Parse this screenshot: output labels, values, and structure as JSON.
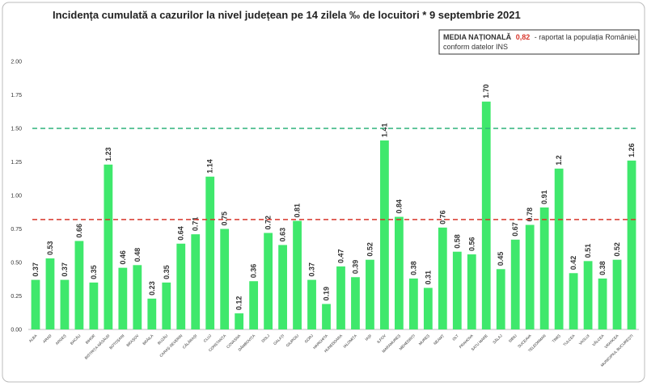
{
  "chart_data": {
    "type": "bar",
    "title": "Incidența cumulată a cazurilor la nivel județean pe 14 zilela ‰ de locuitori * 9 septembrie 2021",
    "annotation": {
      "title": "MEDIA NAȚIONALĂ",
      "value_label": "0,82",
      "text": "- raportat la populația României,",
      "text2": "conform datelor INS"
    },
    "categories": [
      "ALBA",
      "ARAD",
      "ARGEȘ",
      "BACĂU",
      "BIHOR",
      "BISTRIȚA-NĂSĂUD",
      "BOTOȘANI",
      "BRAȘOV",
      "BRĂILA",
      "BUZĂU",
      "CARAȘ-SEVERIN",
      "CĂLĂRAȘI",
      "CLUJ",
      "CONSTANȚA",
      "COVASNA",
      "DÂMBOVIȚA",
      "DOLJ",
      "GALAȚI",
      "GIURGIU",
      "GORJ",
      "HARGHITA",
      "HUNEDOARA",
      "IALOMIȚA",
      "IAȘI",
      "ILFOV",
      "MARAMUREȘ",
      "MEHEDINȚI",
      "MUREȘ",
      "NEAMȚ",
      "OLT",
      "PRAHOVA",
      "SATU MARE",
      "SĂLAJ",
      "SIBIU",
      "SUCEAVA",
      "TELEORMAN",
      "TIMIȘ",
      "TULCEA",
      "VASLUI",
      "VÂLCEA",
      "VRANCEA",
      "MUNICIPIUL BUCUREȘTI"
    ],
    "values": [
      0.37,
      0.53,
      0.37,
      0.66,
      0.35,
      1.23,
      0.46,
      0.48,
      0.23,
      0.35,
      0.64,
      0.71,
      1.14,
      0.75,
      0.12,
      0.36,
      0.72,
      0.63,
      0.81,
      0.37,
      0.19,
      0.47,
      0.39,
      0.52,
      1.41,
      0.84,
      0.38,
      0.31,
      0.76,
      0.58,
      0.56,
      1.7,
      0.45,
      0.67,
      0.78,
      0.91,
      1.2,
      0.42,
      0.51,
      0.38,
      0.52,
      1.26
    ],
    "value_labels": [
      "0.37",
      "0.53",
      "0.37",
      "0.66",
      "0.35",
      "1.23",
      "0.46",
      "0.48",
      "0.23",
      "0.35",
      "0.64",
      "0.71",
      "1.14",
      "0.75",
      "0.12",
      "0.36",
      "0.72",
      "0.63",
      "0.81",
      "0.37",
      "0.19",
      "0.47",
      "0.39",
      "0.52",
      "1.41",
      "0.84",
      "0.38",
      "0.31",
      "0.76",
      "0.58",
      "0.56",
      "1.70",
      "0.45",
      "0.67",
      "0.78",
      "0.91",
      "1.2",
      "0.42",
      "0.51",
      "0.38",
      "0.52",
      "1.26"
    ],
    "color": "#3fe86c",
    "reference_lines": [
      {
        "value": 1.5,
        "color": "#2fb27a"
      },
      {
        "value": 0.82,
        "color": "#d8352b"
      }
    ],
    "ylim": [
      0,
      2
    ],
    "yticks": [
      {
        "value": 0,
        "label": "0.00"
      },
      {
        "value": 0.25,
        "label": "0.25"
      },
      {
        "value": 0.5,
        "label": "0.50"
      },
      {
        "value": 0.75,
        "label": "0.75"
      },
      {
        "value": 1,
        "label": "1.00"
      },
      {
        "value": 1.25,
        "label": "1.25"
      },
      {
        "value": 1.5,
        "label": "1.50"
      },
      {
        "value": 1.75,
        "label": "1.75"
      },
      {
        "value": 2,
        "label": "2.00"
      }
    ]
  }
}
